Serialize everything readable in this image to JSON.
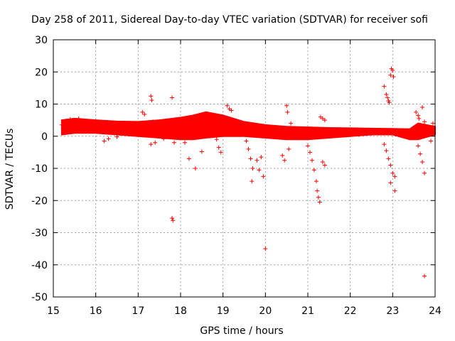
{
  "chart_data": {
    "type": "scatter",
    "title": "Day 258 of 2011, Sidereal Day-to-day VTEC variation (SDTVAR) for receiver sofi",
    "xlabel": "GPS time / hours",
    "ylabel": "SDTVAR / TECUs",
    "xlim": [
      15,
      24
    ],
    "ylim": [
      -50,
      30
    ],
    "xticks": [
      15,
      16,
      17,
      18,
      19,
      20,
      21,
      22,
      23,
      24
    ],
    "yticks": [
      30,
      20,
      10,
      0,
      -10,
      -20,
      -30,
      -40,
      -50
    ],
    "grid": true,
    "marker": "+",
    "series": [
      {
        "name": "SDTVAR",
        "color": "#ff0000",
        "band_upper": [
          [
            15.2,
            5.0
          ],
          [
            15.5,
            5.5
          ],
          [
            16.0,
            5.0
          ],
          [
            16.5,
            4.6
          ],
          [
            17.0,
            4.5
          ],
          [
            17.5,
            5.0
          ],
          [
            18.0,
            5.8
          ],
          [
            18.3,
            6.5
          ],
          [
            18.6,
            7.5
          ],
          [
            19.0,
            6.5
          ],
          [
            19.5,
            4.5
          ],
          [
            20.0,
            3.5
          ],
          [
            20.5,
            3.0
          ],
          [
            21.0,
            2.8
          ],
          [
            21.5,
            2.6
          ],
          [
            22.0,
            2.5
          ],
          [
            22.5,
            2.4
          ],
          [
            23.0,
            2.3
          ],
          [
            23.4,
            2.2
          ],
          [
            23.6,
            4.0
          ],
          [
            24.0,
            3.0
          ]
        ],
        "band_lower": [
          [
            15.2,
            0.5
          ],
          [
            15.5,
            1.0
          ],
          [
            16.0,
            1.0
          ],
          [
            16.5,
            0.5
          ],
          [
            17.0,
            0.0
          ],
          [
            17.5,
            -0.5
          ],
          [
            18.0,
            -1.0
          ],
          [
            18.3,
            -1.0
          ],
          [
            18.6,
            -0.5
          ],
          [
            19.0,
            0.0
          ],
          [
            19.5,
            0.0
          ],
          [
            20.0,
            -0.5
          ],
          [
            20.5,
            -1.0
          ],
          [
            21.0,
            -1.0
          ],
          [
            21.5,
            -0.5
          ],
          [
            22.0,
            0.0
          ],
          [
            22.5,
            0.5
          ],
          [
            23.0,
            0.5
          ],
          [
            23.4,
            -1.0
          ],
          [
            23.6,
            -1.0
          ],
          [
            24.0,
            0.5
          ]
        ],
        "points": [
          [
            15.2,
            3.5
          ],
          [
            15.25,
            1.5
          ],
          [
            15.3,
            4.8
          ],
          [
            15.4,
            5.3
          ],
          [
            15.6,
            5.5
          ],
          [
            16.2,
            -1.5
          ],
          [
            16.3,
            -0.8
          ],
          [
            16.5,
            -0.2
          ],
          [
            17.1,
            7.5
          ],
          [
            17.15,
            6.8
          ],
          [
            17.3,
            12.5
          ],
          [
            17.32,
            11.2
          ],
          [
            17.35,
            4.5
          ],
          [
            17.3,
            -2.5
          ],
          [
            17.4,
            -2.0
          ],
          [
            17.6,
            -0.8
          ],
          [
            17.8,
            12.0
          ],
          [
            17.85,
            -2.0
          ],
          [
            17.8,
            -25.5
          ],
          [
            17.82,
            -26.2
          ],
          [
            18.1,
            -2.0
          ],
          [
            18.2,
            -7.0
          ],
          [
            18.35,
            -10.0
          ],
          [
            18.5,
            -4.8
          ],
          [
            18.7,
            3.0
          ],
          [
            18.85,
            -1.0
          ],
          [
            18.9,
            -3.5
          ],
          [
            18.95,
            -5.0
          ],
          [
            19.1,
            9.5
          ],
          [
            19.15,
            8.5
          ],
          [
            19.2,
            8.0
          ],
          [
            19.55,
            -1.5
          ],
          [
            19.6,
            -4.0
          ],
          [
            19.65,
            -7.0
          ],
          [
            19.7,
            -10.0
          ],
          [
            19.68,
            -14.0
          ],
          [
            19.8,
            -7.5
          ],
          [
            19.85,
            -10.5
          ],
          [
            19.9,
            -6.5
          ],
          [
            19.95,
            -12.5
          ],
          [
            20.0,
            -35.0
          ],
          [
            20.4,
            -6.0
          ],
          [
            20.45,
            -7.5
          ],
          [
            20.5,
            9.5
          ],
          [
            20.52,
            7.5
          ],
          [
            20.55,
            -4.0
          ],
          [
            20.6,
            4.0
          ],
          [
            21.0,
            -3.0
          ],
          [
            21.05,
            -5.0
          ],
          [
            21.1,
            -7.5
          ],
          [
            21.15,
            -10.5
          ],
          [
            21.2,
            -14.0
          ],
          [
            21.22,
            -17.0
          ],
          [
            21.25,
            -19.0
          ],
          [
            21.28,
            -20.5
          ],
          [
            21.3,
            6.0
          ],
          [
            21.35,
            5.5
          ],
          [
            21.4,
            5.0
          ],
          [
            21.35,
            -8.0
          ],
          [
            21.4,
            -9.0
          ],
          [
            22.2,
            0.5
          ],
          [
            22.5,
            0.8
          ],
          [
            22.8,
            15.5
          ],
          [
            22.85,
            13.0
          ],
          [
            22.88,
            12.0
          ],
          [
            22.9,
            11.0
          ],
          [
            22.92,
            10.5
          ],
          [
            22.95,
            19.0
          ],
          [
            22.97,
            21.0
          ],
          [
            23.0,
            20.5
          ],
          [
            23.02,
            18.5
          ],
          [
            22.8,
            -2.5
          ],
          [
            22.85,
            -4.5
          ],
          [
            22.9,
            -7.0
          ],
          [
            22.95,
            -9.0
          ],
          [
            23.0,
            -11.5
          ],
          [
            22.95,
            -14.5
          ],
          [
            23.05,
            -12.5
          ],
          [
            23.05,
            -17.0
          ],
          [
            23.55,
            7.5
          ],
          [
            23.6,
            6.5
          ],
          [
            23.62,
            5.5
          ],
          [
            23.7,
            9.0
          ],
          [
            23.75,
            4.5
          ],
          [
            23.6,
            -3.0
          ],
          [
            23.65,
            -5.5
          ],
          [
            23.7,
            -8.0
          ],
          [
            23.75,
            -11.5
          ],
          [
            23.75,
            -43.5
          ],
          [
            23.9,
            -1.5
          ],
          [
            23.95,
            4.0
          ]
        ]
      }
    ]
  }
}
